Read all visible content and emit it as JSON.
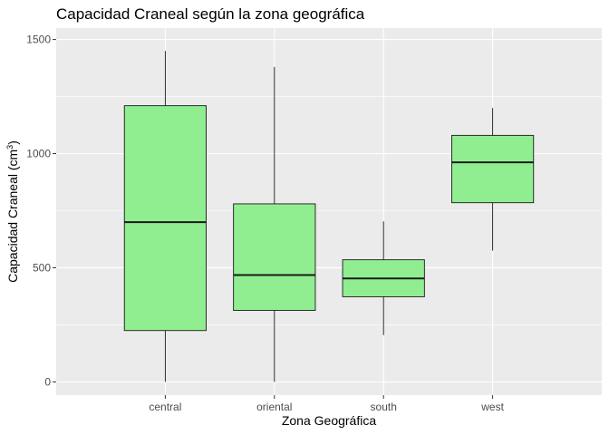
{
  "chart_data": {
    "type": "boxplot",
    "title": "Capacidad Craneal según la zona geográfica",
    "xlabel": "Zona Geográfica",
    "ylabel_main": "Capacidad Craneal (cm",
    "ylabel_sup": "3",
    "ylabel_close": ")",
    "ylim": [
      -58,
      1550
    ],
    "yticks": [
      0,
      500,
      1000,
      1500
    ],
    "categories": [
      "central",
      "oriental",
      "south",
      "west"
    ],
    "boxes": [
      {
        "category": "central",
        "min": 0,
        "q1": 225,
        "median": 700,
        "q3": 1210,
        "max": 1450
      },
      {
        "category": "oriental",
        "min": 0,
        "q1": 313,
        "median": 468,
        "q3": 780,
        "max": 1380
      },
      {
        "category": "south",
        "min": 205,
        "q1": 373,
        "median": 453,
        "q3": 535,
        "max": 703
      },
      {
        "category": "west",
        "min": 575,
        "q1": 785,
        "median": 962,
        "q3": 1080,
        "max": 1200
      }
    ],
    "grid": true,
    "legend": "none",
    "colors": {
      "panel": "#ebebeb",
      "grid": "#ffffff",
      "box_fill": "#90ee90",
      "box_line": "#1a1a1a"
    }
  }
}
